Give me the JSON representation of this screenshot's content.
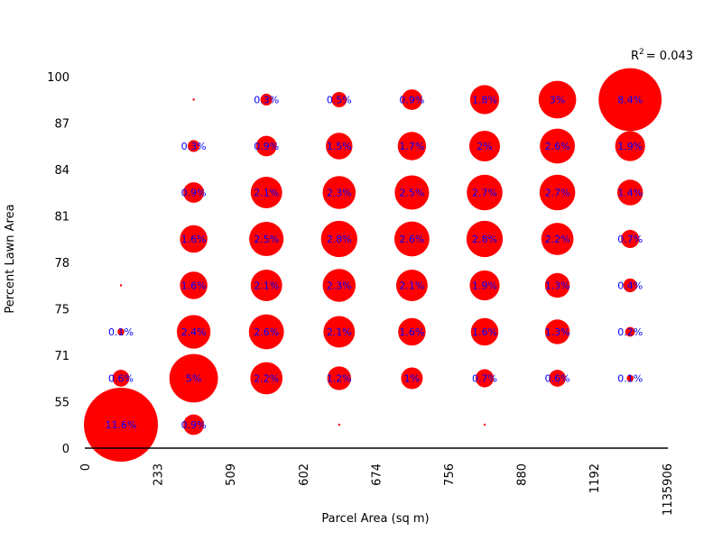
{
  "chart_data": {
    "type": "scatter",
    "subtype": "bubble-grid",
    "title": "",
    "xlabel": "Parcel Area (sq m)",
    "ylabel": "Percent Lawn Area",
    "x_tick_labels": [
      "0",
      "233",
      "509",
      "602",
      "674",
      "756",
      "880",
      "1192",
      "1135906"
    ],
    "y_tick_labels": [
      "0",
      "55",
      "71",
      "75",
      "78",
      "81",
      "84",
      "87",
      "100"
    ],
    "annotation": {
      "prefix": "R",
      "sup": "2",
      "text": "= 0.043"
    },
    "grid": false,
    "colors": {
      "bubble": "#ff0000",
      "label": "#0000ff",
      "axis": "#000000"
    },
    "cells": [
      {
        "x_bin": 1,
        "y_bin": 8,
        "label": "",
        "percent": 0.01
      },
      {
        "x_bin": 2,
        "y_bin": 8,
        "label": "0.3%",
        "percent": 0.3
      },
      {
        "x_bin": 3,
        "y_bin": 8,
        "label": "0.5%",
        "percent": 0.5
      },
      {
        "x_bin": 4,
        "y_bin": 8,
        "label": "0.9%",
        "percent": 0.9
      },
      {
        "x_bin": 5,
        "y_bin": 8,
        "label": "1.8%",
        "percent": 1.8
      },
      {
        "x_bin": 6,
        "y_bin": 8,
        "label": "3%",
        "percent": 3
      },
      {
        "x_bin": 7,
        "y_bin": 8,
        "label": "8.4%",
        "percent": 8.4
      },
      {
        "x_bin": 1,
        "y_bin": 7,
        "label": "0.3%",
        "percent": 0.3
      },
      {
        "x_bin": 2,
        "y_bin": 7,
        "label": "0.9%",
        "percent": 0.9
      },
      {
        "x_bin": 3,
        "y_bin": 7,
        "label": "1.5%",
        "percent": 1.5
      },
      {
        "x_bin": 4,
        "y_bin": 7,
        "label": "1.7%",
        "percent": 1.7
      },
      {
        "x_bin": 5,
        "y_bin": 7,
        "label": "2%",
        "percent": 2
      },
      {
        "x_bin": 6,
        "y_bin": 7,
        "label": "2.6%",
        "percent": 2.6
      },
      {
        "x_bin": 7,
        "y_bin": 7,
        "label": "1.9%",
        "percent": 1.9
      },
      {
        "x_bin": 1,
        "y_bin": 6,
        "label": "0.9%",
        "percent": 0.9
      },
      {
        "x_bin": 2,
        "y_bin": 6,
        "label": "2.1%",
        "percent": 2.1
      },
      {
        "x_bin": 3,
        "y_bin": 6,
        "label": "2.3%",
        "percent": 2.3
      },
      {
        "x_bin": 4,
        "y_bin": 6,
        "label": "2.5%",
        "percent": 2.5
      },
      {
        "x_bin": 5,
        "y_bin": 6,
        "label": "2.7%",
        "percent": 2.7
      },
      {
        "x_bin": 6,
        "y_bin": 6,
        "label": "2.7%",
        "percent": 2.7
      },
      {
        "x_bin": 7,
        "y_bin": 6,
        "label": "1.4%",
        "percent": 1.4
      },
      {
        "x_bin": 1,
        "y_bin": 5,
        "label": "1.6%",
        "percent": 1.6
      },
      {
        "x_bin": 2,
        "y_bin": 5,
        "label": "2.5%",
        "percent": 2.5
      },
      {
        "x_bin": 3,
        "y_bin": 5,
        "label": "2.8%",
        "percent": 2.8
      },
      {
        "x_bin": 4,
        "y_bin": 5,
        "label": "2.6%",
        "percent": 2.6
      },
      {
        "x_bin": 5,
        "y_bin": 5,
        "label": "2.8%",
        "percent": 2.8
      },
      {
        "x_bin": 6,
        "y_bin": 5,
        "label": "2.2%",
        "percent": 2.2
      },
      {
        "x_bin": 7,
        "y_bin": 5,
        "label": "0.7%",
        "percent": 0.7
      },
      {
        "x_bin": 0,
        "y_bin": 4,
        "label": "",
        "percent": 0.01
      },
      {
        "x_bin": 1,
        "y_bin": 4,
        "label": "1.6%",
        "percent": 1.6
      },
      {
        "x_bin": 2,
        "y_bin": 4,
        "label": "2.1%",
        "percent": 2.1
      },
      {
        "x_bin": 3,
        "y_bin": 4,
        "label": "2.3%",
        "percent": 2.3
      },
      {
        "x_bin": 4,
        "y_bin": 4,
        "label": "2.1%",
        "percent": 2.1
      },
      {
        "x_bin": 5,
        "y_bin": 4,
        "label": "1.9%",
        "percent": 1.9
      },
      {
        "x_bin": 6,
        "y_bin": 4,
        "label": "1.3%",
        "percent": 1.3
      },
      {
        "x_bin": 7,
        "y_bin": 4,
        "label": "0.4%",
        "percent": 0.4
      },
      {
        "x_bin": 0,
        "y_bin": 3,
        "label": "0.1%",
        "percent": 0.1
      },
      {
        "x_bin": 1,
        "y_bin": 3,
        "label": "2.4%",
        "percent": 2.4
      },
      {
        "x_bin": 2,
        "y_bin": 3,
        "label": "2.6%",
        "percent": 2.6
      },
      {
        "x_bin": 3,
        "y_bin": 3,
        "label": "2.1%",
        "percent": 2.1
      },
      {
        "x_bin": 4,
        "y_bin": 3,
        "label": "1.6%",
        "percent": 1.6
      },
      {
        "x_bin": 5,
        "y_bin": 3,
        "label": "1.6%",
        "percent": 1.6
      },
      {
        "x_bin": 6,
        "y_bin": 3,
        "label": "1.3%",
        "percent": 1.3
      },
      {
        "x_bin": 7,
        "y_bin": 3,
        "label": "0.2%",
        "percent": 0.2
      },
      {
        "x_bin": 0,
        "y_bin": 2,
        "label": "0.6%",
        "percent": 0.6
      },
      {
        "x_bin": 1,
        "y_bin": 2,
        "label": "5%",
        "percent": 5
      },
      {
        "x_bin": 2,
        "y_bin": 2,
        "label": "2.2%",
        "percent": 2.2
      },
      {
        "x_bin": 3,
        "y_bin": 2,
        "label": "1.2%",
        "percent": 1.2
      },
      {
        "x_bin": 4,
        "y_bin": 2,
        "label": "1%",
        "percent": 1
      },
      {
        "x_bin": 5,
        "y_bin": 2,
        "label": "0.7%",
        "percent": 0.7
      },
      {
        "x_bin": 6,
        "y_bin": 2,
        "label": "0.6%",
        "percent": 0.6
      },
      {
        "x_bin": 7,
        "y_bin": 2,
        "label": "0.1%",
        "percent": 0.1
      },
      {
        "x_bin": 0,
        "y_bin": 1,
        "label": "11.6%",
        "percent": 11.6
      },
      {
        "x_bin": 1,
        "y_bin": 1,
        "label": "0.9%",
        "percent": 0.9
      },
      {
        "x_bin": 3,
        "y_bin": 1,
        "label": "",
        "percent": 0.01
      },
      {
        "x_bin": 5,
        "y_bin": 1,
        "label": "",
        "percent": 0.01
      }
    ]
  }
}
